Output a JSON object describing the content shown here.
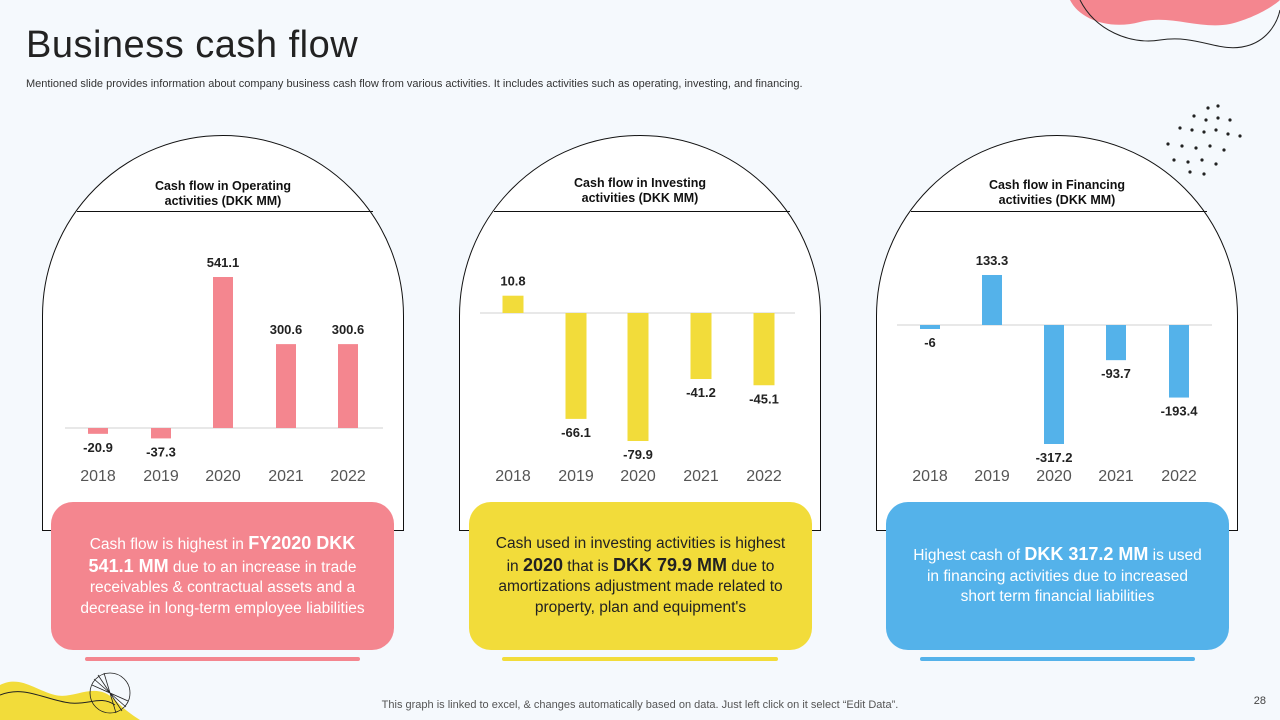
{
  "slide": {
    "title": "Business cash flow",
    "subtitle": "Mentioned slide provides information about company business cash flow from various activities. It includes activities such as operating, investing, and financing.",
    "footnote": "This graph is linked to excel, & changes automatically based on data. Just left click on it select “Edit Data”.",
    "page_number": "28"
  },
  "colors": {
    "pink": "#f4868f",
    "yellow": "#f2dc3a",
    "blue": "#54b2ea"
  },
  "chart_data": [
    {
      "type": "bar",
      "title": "Cash flow in Operating activities (DKK MM)",
      "title_lines": [
        "Cash flow in Operating",
        "activities (DKK MM)"
      ],
      "categories": [
        "2018",
        "2019",
        "2020",
        "2021",
        "2022"
      ],
      "values": [
        -20.9,
        -37.3,
        541.1,
        300.6,
        300.6
      ],
      "labels": [
        "-20.9",
        "-37.3",
        "541.1",
        "300.6",
        "300.6"
      ],
      "color": "#f4868f",
      "grid": false,
      "legend": "none"
    },
    {
      "type": "bar",
      "title": "Cash flow in Investing activities (DKK MM)",
      "title_lines": [
        "Cash flow in Investing",
        "activities (DKK MM)"
      ],
      "categories": [
        "2018",
        "2019",
        "2020",
        "2021",
        "2022"
      ],
      "values": [
        10.8,
        -66.1,
        -79.9,
        -41.2,
        -45.1
      ],
      "labels": [
        "10.8",
        "-66.1",
        "-79.9",
        "-41.2",
        "-45.1"
      ],
      "color": "#f2dc3a",
      "grid": false,
      "legend": "none"
    },
    {
      "type": "bar",
      "title": "Cash flow in Financing activities (DKK MM)",
      "title_lines": [
        "Cash flow in Financing",
        "activities (DKK MM)"
      ],
      "categories": [
        "2018",
        "2019",
        "2020",
        "2021",
        "2022"
      ],
      "values": [
        -6,
        133.3,
        -317.2,
        -93.7,
        -193.4
      ],
      "labels": [
        "-6",
        "133.3",
        "-317.2",
        "-93.7",
        "-193.4"
      ],
      "color": "#54b2ea",
      "grid": false,
      "legend": "none"
    }
  ],
  "cards": [
    {
      "parts": [
        {
          "t": "Cash flow is highest in ",
          "b": false
        },
        {
          "t": "FY2020 DKK 541.1 MM",
          "b": true
        },
        {
          "t": " due to an increase in trade receivables & contractual assets and a decrease in long-term employee liabilities",
          "b": false
        }
      ]
    },
    {
      "parts": [
        {
          "t": "Cash used in investing activities is highest in ",
          "b": false
        },
        {
          "t": "2020",
          "b": true
        },
        {
          "t": " that is ",
          "b": false
        },
        {
          "t": "DKK 79.9 MM",
          "b": true
        },
        {
          "t": " due to amortizations adjustment made related to property, plan and equipment's",
          "b": false
        }
      ]
    },
    {
      "parts": [
        {
          "t": "Highest cash of ",
          "b": false
        },
        {
          "t": "DKK 317.2 MM",
          "b": true
        },
        {
          "t": " is used in financing activities due to increased short term financial liabilities",
          "b": false
        }
      ]
    }
  ]
}
